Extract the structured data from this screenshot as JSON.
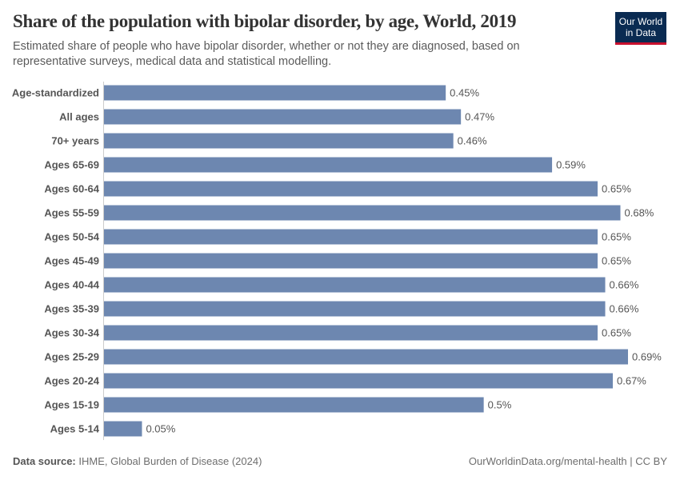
{
  "header": {
    "title": "Share of the population with bipolar disorder, by age, World, 2019",
    "subtitle": "Estimated share of people who have bipolar disorder, whether or not they are diagnosed, based on representative surveys, medical data and statistical modelling.",
    "logo_text": "Our World in Data"
  },
  "footer": {
    "source_label": "Data source:",
    "source": "IHME, Global Burden of Disease (2024)",
    "url": "OurWorldinData.org/mental-health | CC BY"
  },
  "colors": {
    "bar": "#6d87b0",
    "logo_bg": "#0a2b52",
    "logo_accent": "#c8102e"
  },
  "chart_data": {
    "type": "bar",
    "orientation": "horizontal",
    "title": "Share of the population with bipolar disorder, by age, World, 2019",
    "unit": "%",
    "categories": [
      "Age-standardized",
      "All ages",
      "70+ years",
      "Ages 65-69",
      "Ages 60-64",
      "Ages 55-59",
      "Ages 50-54",
      "Ages 45-49",
      "Ages 40-44",
      "Ages 35-39",
      "Ages 30-34",
      "Ages 25-29",
      "Ages 20-24",
      "Ages 15-19",
      "Ages 5-14"
    ],
    "values": [
      0.45,
      0.47,
      0.46,
      0.59,
      0.65,
      0.68,
      0.65,
      0.65,
      0.66,
      0.66,
      0.65,
      0.69,
      0.67,
      0.5,
      0.05
    ],
    "labels": [
      "0.45%",
      "0.47%",
      "0.46%",
      "0.59%",
      "0.65%",
      "0.68%",
      "0.65%",
      "0.65%",
      "0.66%",
      "0.66%",
      "0.65%",
      "0.69%",
      "0.67%",
      "0.5%",
      "0.05%"
    ],
    "xlim": [
      0,
      0.69
    ],
    "grid": false,
    "legend": "none"
  }
}
